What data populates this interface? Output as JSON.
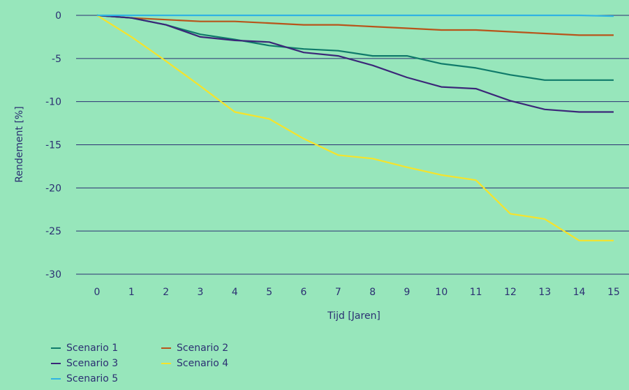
{
  "chart_data": {
    "type": "line",
    "xlabel": "Tijd [Jaren]",
    "ylabel": "Rendement [%]",
    "xlim": [
      0,
      15
    ],
    "ylim": [
      -30,
      0
    ],
    "x_ticks": [
      "0",
      "1",
      "2",
      "3",
      "4",
      "5",
      "6",
      "7",
      "8",
      "9",
      "10",
      "11",
      "12",
      "13",
      "14",
      "15"
    ],
    "y_ticks": [
      "0",
      "-5",
      "-10",
      "-15",
      "-20",
      "-25",
      "-30"
    ],
    "grid": "horizontal",
    "legend_position": "bottom-left",
    "x": [
      0,
      1,
      2,
      3,
      4,
      5,
      6,
      7,
      8,
      9,
      10,
      11,
      12,
      13,
      14,
      15
    ],
    "series": [
      {
        "name": "Scenario 1",
        "color": "#0f7a6a",
        "values": [
          0,
          -0.3,
          -1.1,
          -2.2,
          -2.8,
          -3.5,
          -3.9,
          -4.1,
          -4.7,
          -4.7,
          -5.6,
          -6.1,
          -6.9,
          -7.5,
          -7.5,
          -7.5
        ]
      },
      {
        "name": "Scenario 2",
        "color": "#b8541a",
        "values": [
          0,
          -0.3,
          -0.5,
          -0.7,
          -0.7,
          -0.9,
          -1.1,
          -1.1,
          -1.3,
          -1.5,
          -1.7,
          -1.7,
          -1.9,
          -2.1,
          -2.3,
          -2.3
        ]
      },
      {
        "name": "Scenario 3",
        "color": "#3b2678",
        "values": [
          0,
          -0.3,
          -1.1,
          -2.5,
          -2.9,
          -3.1,
          -4.3,
          -4.7,
          -5.8,
          -7.2,
          -8.3,
          -8.5,
          -9.9,
          -10.9,
          -11.2,
          -11.2
        ]
      },
      {
        "name": "Scenario 4",
        "color": "#f6e32a",
        "values": [
          0,
          -2.5,
          -5.3,
          -8.2,
          -11.2,
          -12.0,
          -14.3,
          -16.2,
          -16.6,
          -17.6,
          -18.5,
          -19.1,
          -23.0,
          -23.6,
          -26.1,
          -26.1
        ]
      },
      {
        "name": "Scenario 5",
        "color": "#2fb3e3",
        "values": [
          0,
          0,
          0,
          0,
          0,
          0,
          0,
          0,
          0,
          0,
          0,
          0,
          0,
          0,
          0,
          -0.1
        ]
      }
    ]
  }
}
